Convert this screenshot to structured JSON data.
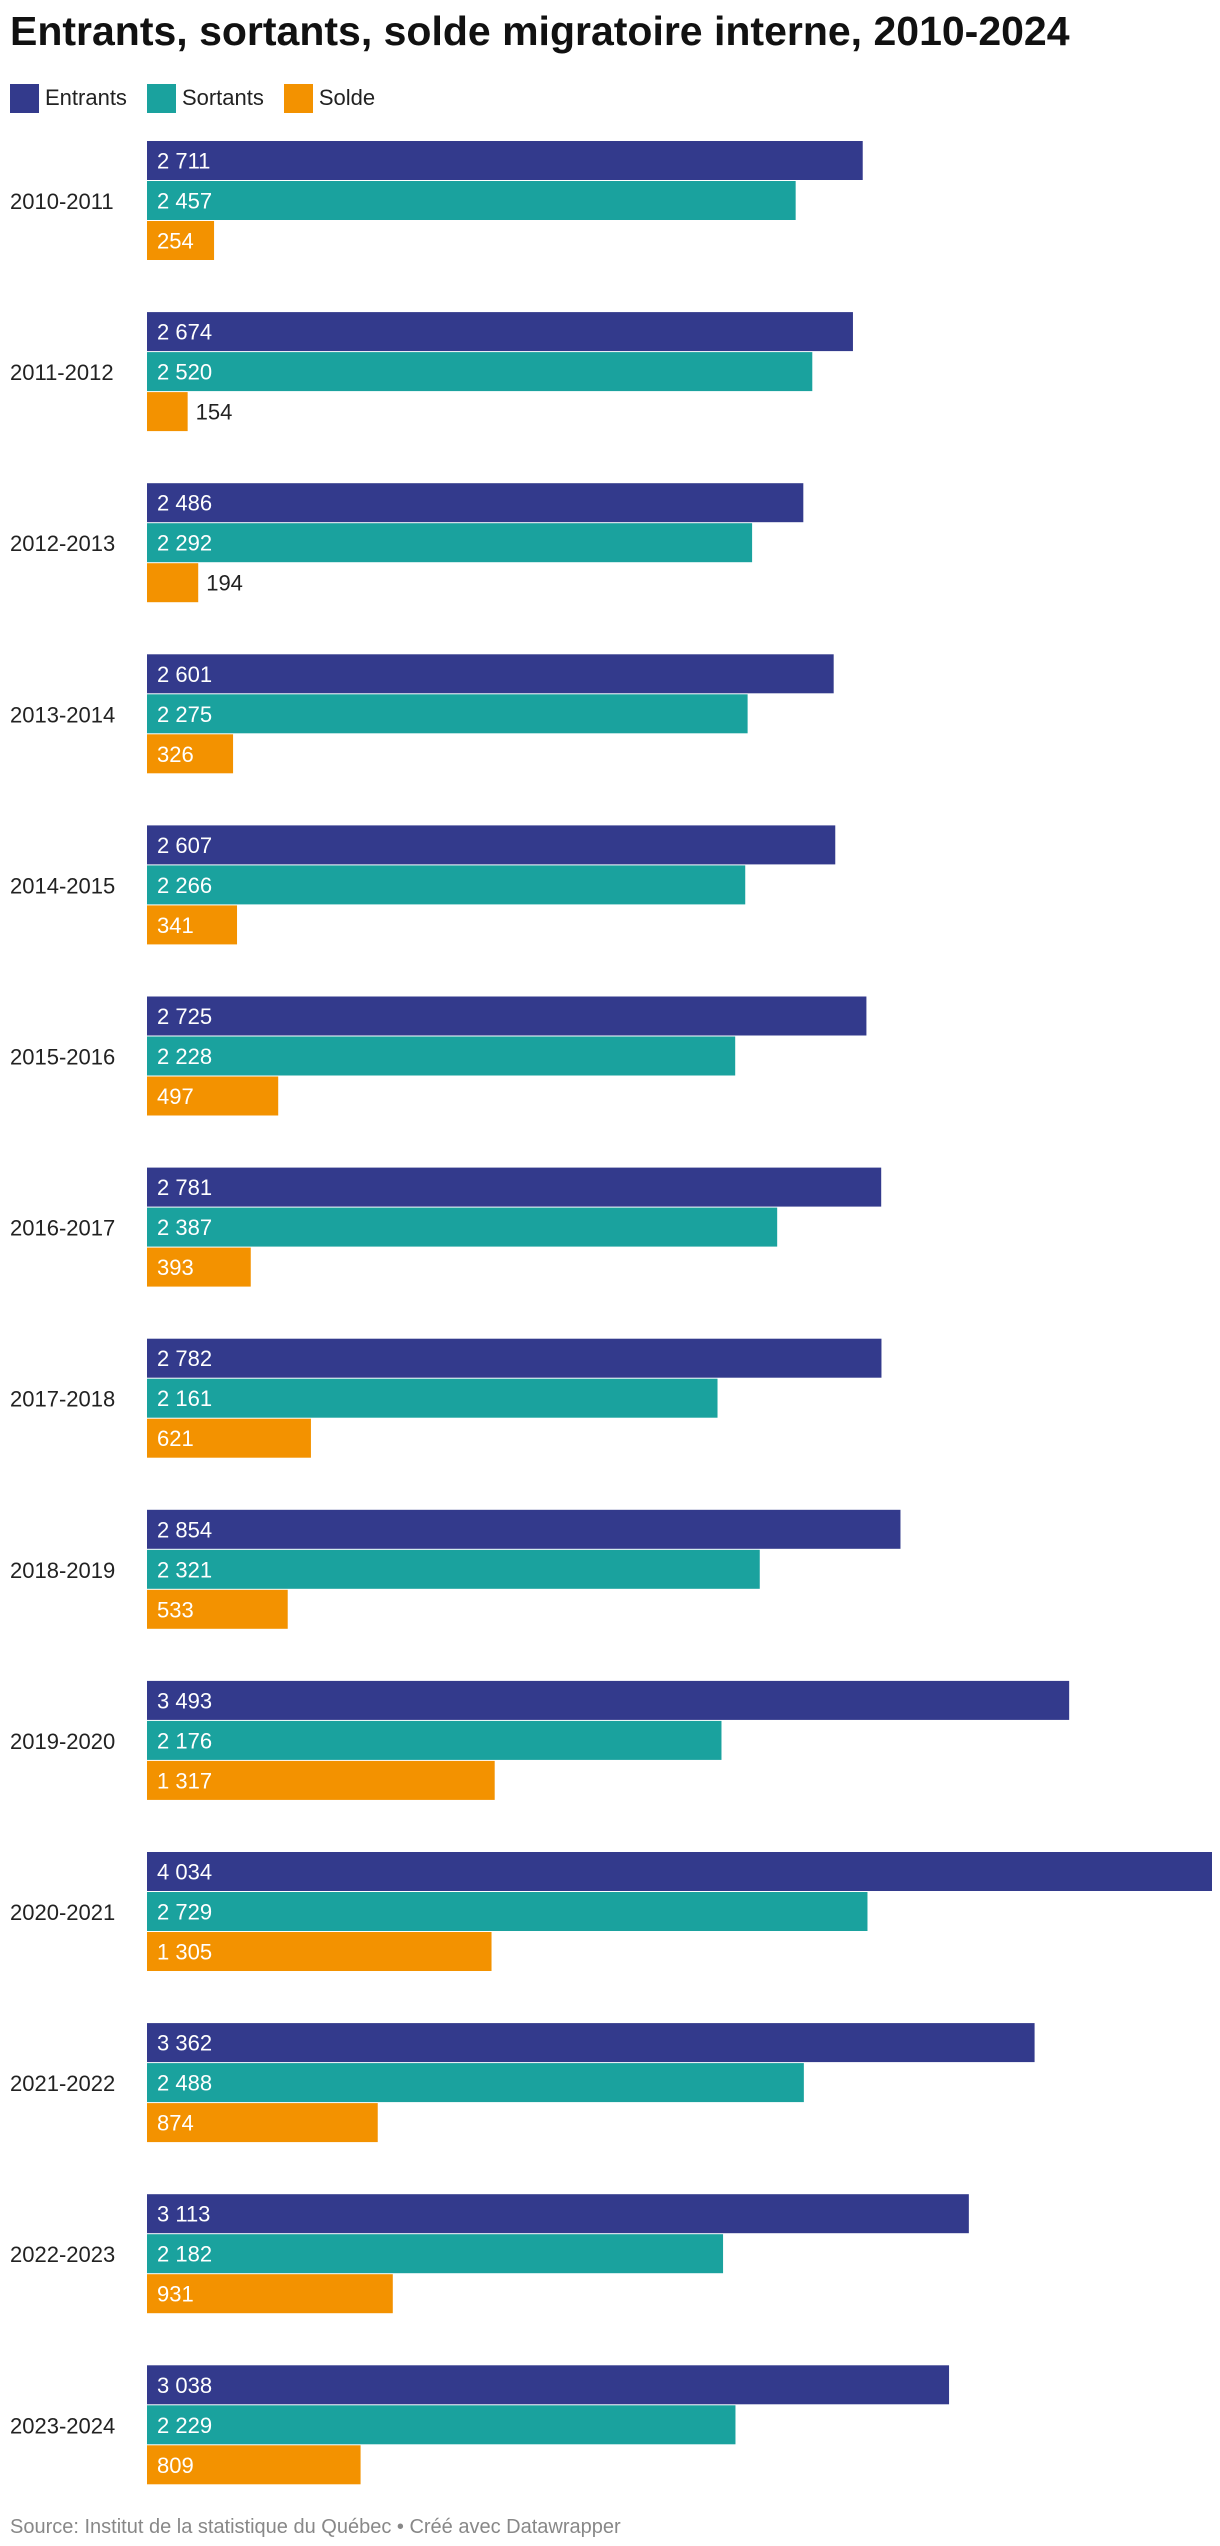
{
  "title": "Entrants, sortants, solde migratoire interne, 2010-2024",
  "footer": "Source: Institut de la statistique du Québec • Créé avec Datawrapper",
  "colors": {
    "Entrants": "#333a8c",
    "Sortants": "#1aa29e",
    "Solde": "#f39200"
  },
  "chart_data": {
    "type": "bar",
    "orientation": "horizontal",
    "title": "Entrants, sortants, solde migratoire interne, 2010-2024",
    "categories": [
      "2010-2011",
      "2011-2012",
      "2012-2013",
      "2013-2014",
      "2014-2015",
      "2015-2016",
      "2016-2017",
      "2017-2018",
      "2018-2019",
      "2019-2020",
      "2020-2021",
      "2021-2022",
      "2022-2023",
      "2023-2024"
    ],
    "series": [
      {
        "name": "Entrants",
        "values": [
          2711,
          2674,
          2486,
          2601,
          2607,
          2725,
          2781,
          2782,
          2854,
          3493,
          4034,
          3362,
          3113,
          3038
        ],
        "labels": [
          "2 711",
          "2 674",
          "2 486",
          "2 601",
          "2 607",
          "2 725",
          "2 781",
          "2 782",
          "2 854",
          "3 493",
          "4 034",
          "3 362",
          "3 113",
          "3 038"
        ]
      },
      {
        "name": "Sortants",
        "values": [
          2457,
          2520,
          2292,
          2275,
          2266,
          2228,
          2387,
          2161,
          2321,
          2176,
          2729,
          2488,
          2182,
          2229
        ],
        "labels": [
          "2 457",
          "2 520",
          "2 292",
          "2 275",
          "2 266",
          "2 228",
          "2 387",
          "2 161",
          "2 321",
          "2 176",
          "2 729",
          "2 488",
          "2 182",
          "2 229"
        ]
      },
      {
        "name": "Solde",
        "values": [
          254,
          154,
          194,
          326,
          341,
          497,
          393,
          621,
          533,
          1317,
          1305,
          874,
          931,
          809
        ],
        "labels": [
          "254",
          "154",
          "194",
          "326",
          "341",
          "497",
          "393",
          "621",
          "533",
          "1 317",
          "1 305",
          "874",
          "931",
          "809"
        ]
      }
    ],
    "xlim": [
      0,
      4034
    ],
    "legend": "top-left",
    "grid": false
  }
}
